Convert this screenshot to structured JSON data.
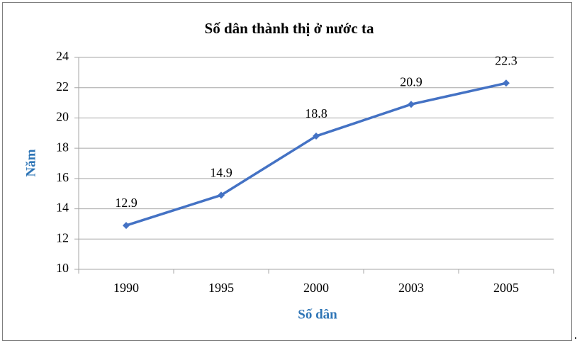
{
  "chart_data": {
    "type": "line",
    "title": "Số dân thành thị ở nước ta",
    "x_label": "Số dân",
    "y_label": "Năm",
    "categories": [
      "1990",
      "1995",
      "2000",
      "2003",
      "2005"
    ],
    "values": [
      12.9,
      14.9,
      18.8,
      20.9,
      22.3
    ],
    "color": "#4472c4",
    "ylim": [
      10,
      24
    ],
    "yticks": [
      10,
      12,
      14,
      16,
      18,
      20,
      22,
      24
    ],
    "grid": true,
    "note": "."
  }
}
